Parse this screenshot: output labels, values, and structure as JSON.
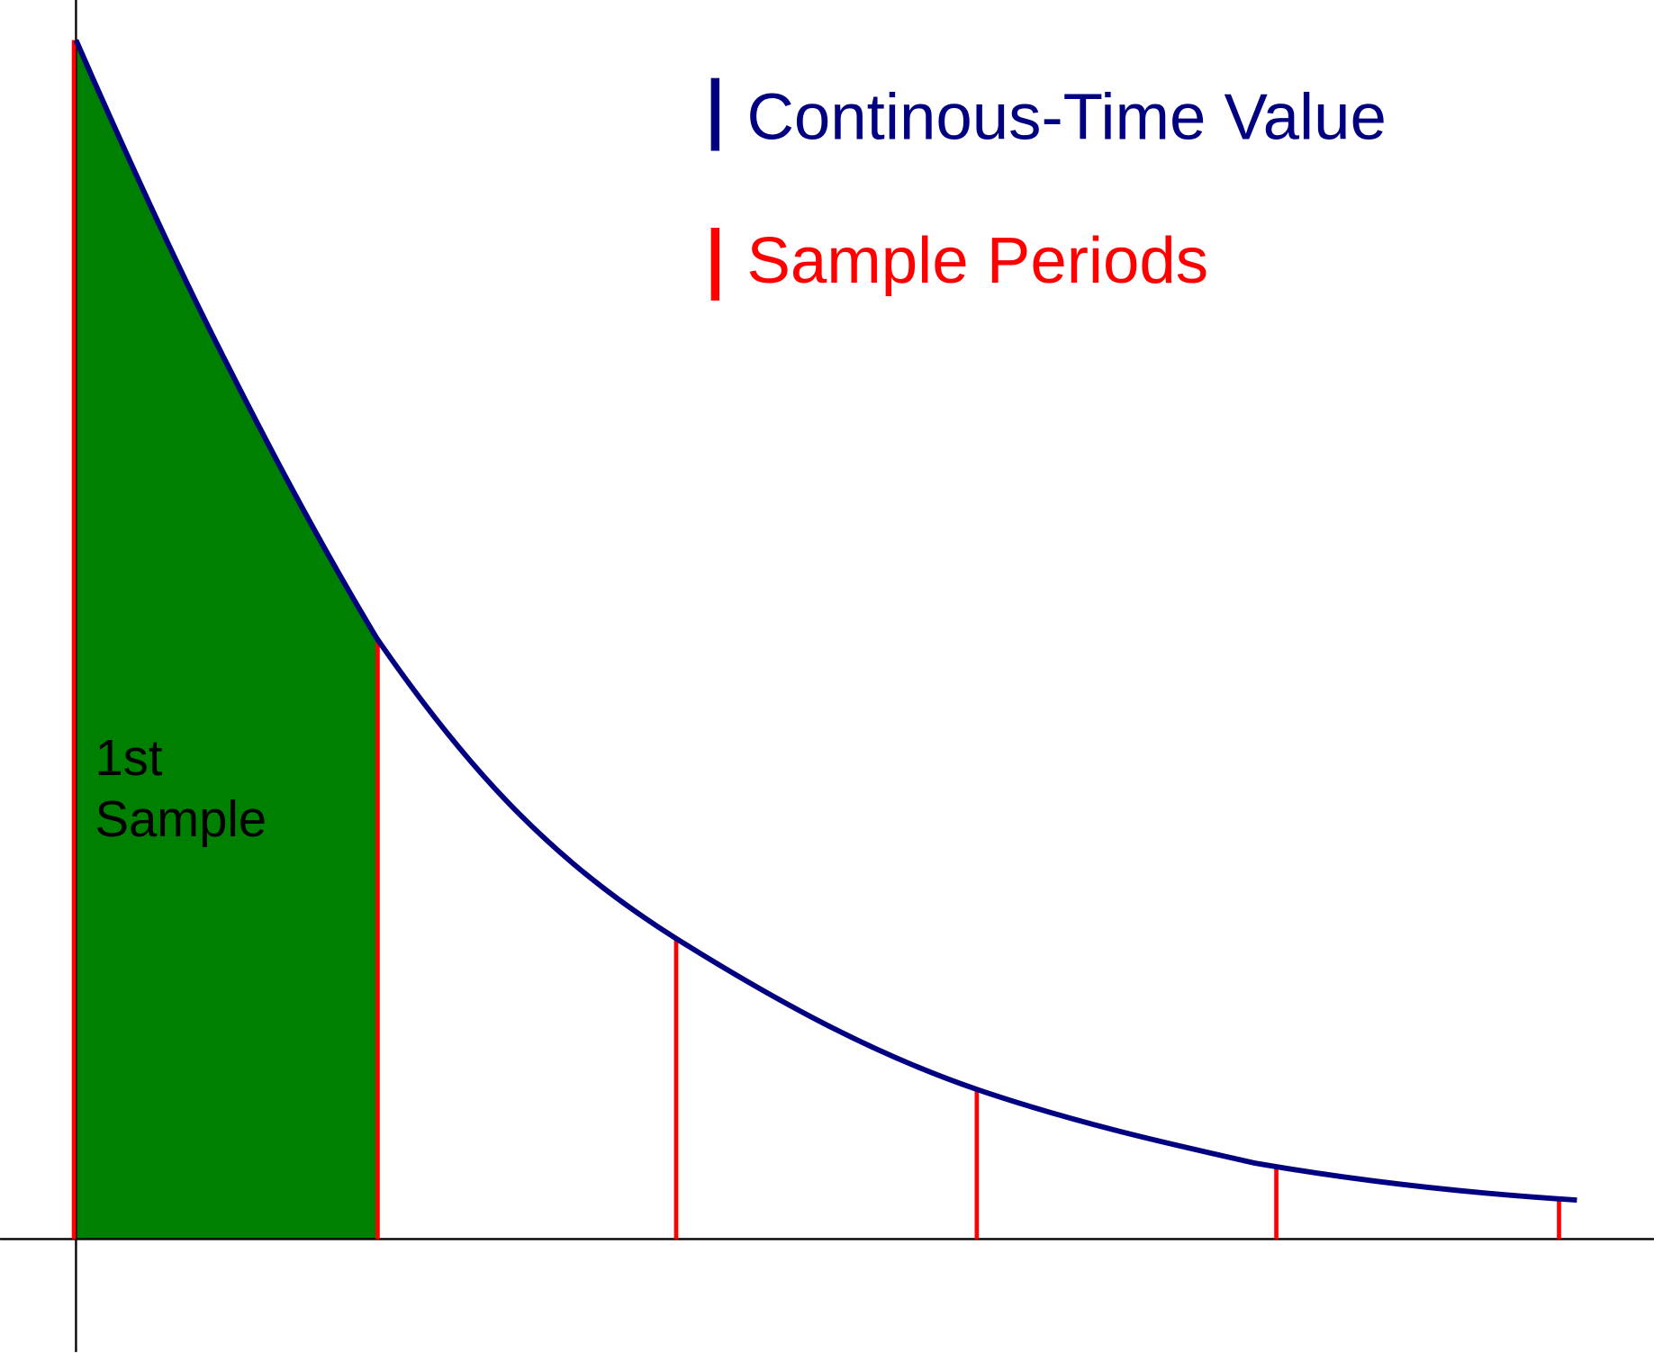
{
  "legend": {
    "items": [
      {
        "label": "Continous-Time Value",
        "color": "#000080"
      },
      {
        "label": "Sample Periods",
        "color": "#ff0000"
      }
    ]
  },
  "annotation": {
    "lines": [
      "1st",
      "Sample"
    ]
  }
}
